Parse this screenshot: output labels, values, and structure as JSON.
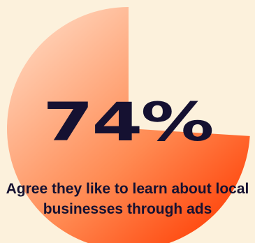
{
  "chart_data": {
    "type": "pie",
    "title": "",
    "values": [
      74,
      26
    ],
    "slices": [
      {
        "label": "Agree",
        "value": 74,
        "visible": true
      },
      {
        "label": "",
        "value": 26,
        "visible": false
      }
    ],
    "headline": "74%",
    "caption": "Agree they like to learn about local businesses through ads",
    "colors": {
      "gradient_light": "#ffd2b8",
      "gradient_mid": "#ff8a52",
      "gradient_dark": "#ff3a00",
      "background": "#fcf1dc",
      "text": "#151131"
    }
  }
}
